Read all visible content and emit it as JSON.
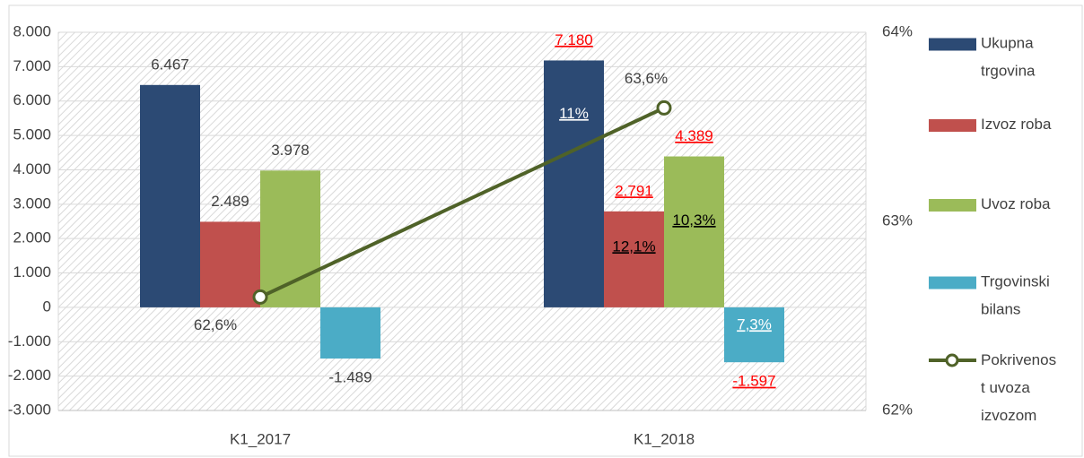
{
  "chart_data": {
    "type": "bar",
    "categories": [
      "K1_2017",
      "K1_2018"
    ],
    "series": [
      {
        "name": "Ukupna trgovina",
        "color": "#2c4a74",
        "values": [
          6467,
          7180
        ],
        "value_labels": [
          "6.467",
          "7.180"
        ],
        "value_label_colors": [
          "#404040",
          "#ff0000"
        ],
        "notes": [
          null,
          "11%"
        ]
      },
      {
        "name": "Izvoz roba",
        "color": "#c0504d",
        "values": [
          2489,
          2791
        ],
        "value_labels": [
          "2.489",
          "2.791"
        ],
        "value_label_colors": [
          "#404040",
          "#ff0000"
        ],
        "notes": [
          null,
          "12,1%"
        ]
      },
      {
        "name": "Uvoz roba",
        "color": "#9bbb59",
        "values": [
          3978,
          4389
        ],
        "value_labels": [
          "3.978",
          "4.389"
        ],
        "value_label_colors": [
          "#404040",
          "#ff0000"
        ],
        "notes": [
          null,
          "10,3%"
        ]
      },
      {
        "name": "Trgovinski bilans",
        "color": "#4bacc6",
        "values": [
          -1489,
          -1597
        ],
        "value_labels": [
          "-1.489",
          "-1.597"
        ],
        "value_label_colors": [
          "#404040",
          "#ff0000"
        ],
        "notes": [
          null,
          "7,3%"
        ]
      },
      {
        "name": "Pokrivenost uvoza izvozom",
        "type": "line",
        "axis": "y2",
        "color": "#4f6228",
        "values": [
          62.6,
          63.6
        ],
        "value_labels": [
          "62,6%",
          "63,6%"
        ]
      }
    ],
    "ylim": [
      -3000,
      8000
    ],
    "yticks": [
      {
        "value": -3000,
        "label": "-3.000"
      },
      {
        "value": -2000,
        "label": "-2.000"
      },
      {
        "value": -1000,
        "label": "-1.000"
      },
      0,
      {
        "value": 1000,
        "label": "1.000"
      },
      {
        "value": 2000,
        "label": "2.000"
      },
      {
        "value": 3000,
        "label": "3.000"
      },
      {
        "value": 4000,
        "label": "4.000"
      },
      {
        "value": 5000,
        "label": "5.000"
      },
      {
        "value": 6000,
        "label": "6.000"
      },
      {
        "value": 7000,
        "label": "7.000"
      },
      {
        "value": 8000,
        "label": "8.000"
      }
    ],
    "y2lim": [
      62,
      64
    ],
    "y2ticks": [
      {
        "value": 62,
        "label": "62%"
      },
      {
        "value": 63,
        "label": "63%"
      },
      {
        "value": 64,
        "label": "64%"
      }
    ],
    "grid": true,
    "legend": "right"
  }
}
